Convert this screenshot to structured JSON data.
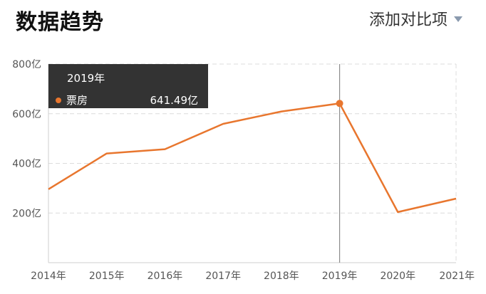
{
  "header": {
    "title": "数据趋势",
    "compare_label": "添加对比项"
  },
  "colors": {
    "series": "#e8762e",
    "grid": "#dcdcdc",
    "tooltip_bg": "#333333"
  },
  "tooltip": {
    "title": "2019年",
    "series_name": "票房",
    "value": "641.49亿"
  },
  "chart_data": {
    "type": "line",
    "categories": [
      "2014年",
      "2015年",
      "2016年",
      "2017年",
      "2018年",
      "2019年",
      "2020年",
      "2021年"
    ],
    "series": [
      {
        "name": "票房",
        "values": [
          296,
          440,
          457,
          559,
          609,
          641.49,
          204,
          258
        ]
      }
    ],
    "ylim": [
      0,
      800
    ],
    "yticks": [
      200,
      400,
      600,
      800
    ],
    "ytick_labels": [
      "200亿",
      "400亿",
      "600亿",
      "800亿"
    ],
    "grid": true,
    "highlight_index": 5,
    "title": "",
    "xlabel": "",
    "ylabel": ""
  }
}
